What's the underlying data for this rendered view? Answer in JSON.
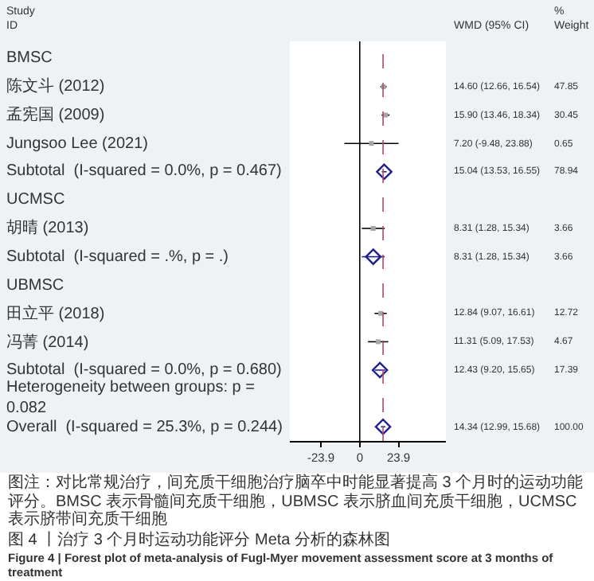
{
  "chart_data": {
    "type": "scatter",
    "orientation": "horizontal",
    "title": "图 4 丨治疗 3 个月时运动功能评分 Meta 分析的森林图",
    "subtitle": "Figure 4  |  Forest plot of meta-analysis of Fugl-Myer movement assessment score at 3 months of treatment",
    "annotations": [
      "Study\nID",
      "WMD (95% CI)",
      "%\nWeight",
      "图注：对比常规治疗，间充质干细胞治疗脑卒中时能显著提高 3 个月时的运动功能评分。BMSC 表示骨髓间充质干细胞，UBMSC 表示脐血间充质干细胞，UCMSC 表示脐带间充质干细胞"
    ],
    "categories": [
      "BMSC",
      "陈文斗 (2012)",
      "孟宪国 (2009)",
      "Jungsoo Lee (2021)",
      "Subtotal  (I-squared = 0.0%, p = 0.467)",
      "UCMSC",
      "胡晴 (2013)",
      "Subtotal  (I-squared = .%, p = .)",
      "UBMSC",
      "田立平 (2018)",
      "冯菁 (2014)",
      "Subtotal  (I-squared = 0.0%, p = 0.680)",
      "Heterogeneity between groups: p = 0.082",
      "Overall  (I-squared = 25.3%, p = 0.244)"
    ],
    "series": [
      {
        "marker": "square",
        "color": "#a6a6a6",
        "values": [
          null,
          14.6,
          15.9,
          7.2,
          null,
          null,
          8.31,
          null,
          null,
          12.84,
          11.31,
          null,
          null,
          null
        ],
        "errors": [
          null,
          [
            12.66,
            16.54
          ],
          [
            13.46,
            18.34
          ],
          [
            -9.48,
            23.88
          ],
          null,
          null,
          [
            1.28,
            15.34
          ],
          null,
          null,
          [
            9.07,
            16.61
          ],
          [
            5.09,
            17.53
          ],
          null,
          null,
          null
        ],
        "value_labels": [
          null,
          "14.60 (12.66, 16.54) 47.85",
          "15.90 (13.46, 18.34) 30.45",
          "7.20 (-9.48, 23.88) 0.65",
          null,
          null,
          "8.31 (1.28, 15.34) 3.66",
          null,
          null,
          "12.84 (9.07, 16.61) 12.72",
          "11.31 (5.09, 17.53) 4.67",
          null,
          null,
          null
        ]
      },
      {
        "marker": "diamond",
        "color": "#1f1f8c",
        "values": [
          null,
          null,
          null,
          null,
          15.04,
          null,
          null,
          8.31,
          null,
          null,
          null,
          12.43,
          null,
          14.34
        ],
        "errors": [
          null,
          null,
          null,
          null,
          [
            13.53,
            16.55
          ],
          null,
          null,
          [
            1.28,
            15.34
          ],
          null,
          null,
          null,
          [
            9.2,
            15.65
          ],
          null,
          [
            12.99,
            15.68
          ]
        ],
        "value_labels": [
          null,
          null,
          null,
          null,
          "15.04 (13.53, 16.55) 78.94",
          null,
          null,
          "8.31 (1.28, 15.34) 3.66",
          null,
          null,
          null,
          "12.43 (9.20, 15.65) 17.39",
          null,
          "14.34 (12.99, 15.68) 100.00"
        ]
      }
    ],
    "xlim": [
      -43,
      53
    ],
    "xticks": [
      -23.9,
      0,
      23.9
    ],
    "ref_lines": [
      {
        "axis": "x",
        "value": 0,
        "color": "#000000",
        "line_style": "solid"
      },
      {
        "axis": "x",
        "value": 14.34,
        "color": "#b04a6a",
        "line_style": "dashed"
      }
    ],
    "grid": false
  }
}
